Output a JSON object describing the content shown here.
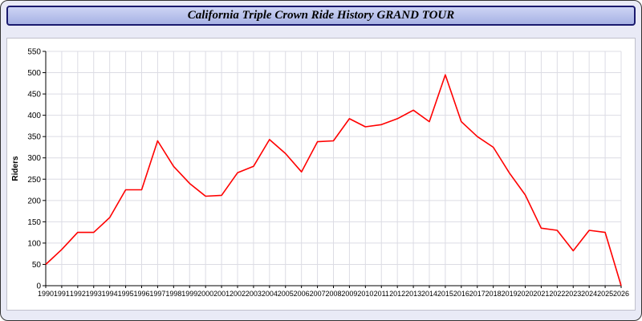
{
  "header": {
    "title": "California Triple Crown Ride History GRAND TOUR"
  },
  "colors": {
    "page_bg": "#e9eaf6",
    "header_bg": "#a7b2e4",
    "header_border": "#1a1a6e",
    "plot_bg": "#ffffff",
    "grid": "#dcdce4",
    "axis": "#000000",
    "line": "#ff0000"
  },
  "chart_data": {
    "type": "line",
    "title": "California Triple Crown Ride History GRAND TOUR",
    "xlabel": "",
    "ylabel": "Riders",
    "ylim": [
      0,
      550
    ],
    "ytick_step": 50,
    "grid": true,
    "legend": "none",
    "x": [
      1990,
      1991,
      1992,
      1993,
      1994,
      1995,
      1996,
      1997,
      1998,
      1999,
      2000,
      2001,
      2002,
      2003,
      2004,
      2005,
      2006,
      2007,
      2008,
      2009,
      2010,
      2011,
      2012,
      2013,
      2014,
      2015,
      2016,
      2017,
      2018,
      2019,
      2020,
      2021,
      2022,
      2023,
      2024,
      2025,
      2026
    ],
    "series": [
      {
        "name": "Riders",
        "color": "#ff0000",
        "values": [
          50,
          85,
          125,
          125,
          160,
          225,
          225,
          340,
          280,
          240,
          210,
          212,
          265,
          280,
          343,
          310,
          267,
          338,
          340,
          392,
          373,
          378,
          392,
          412,
          385,
          495,
          385,
          350,
          325,
          265,
          213,
          135,
          130,
          82,
          130,
          125,
          0
        ]
      }
    ]
  }
}
